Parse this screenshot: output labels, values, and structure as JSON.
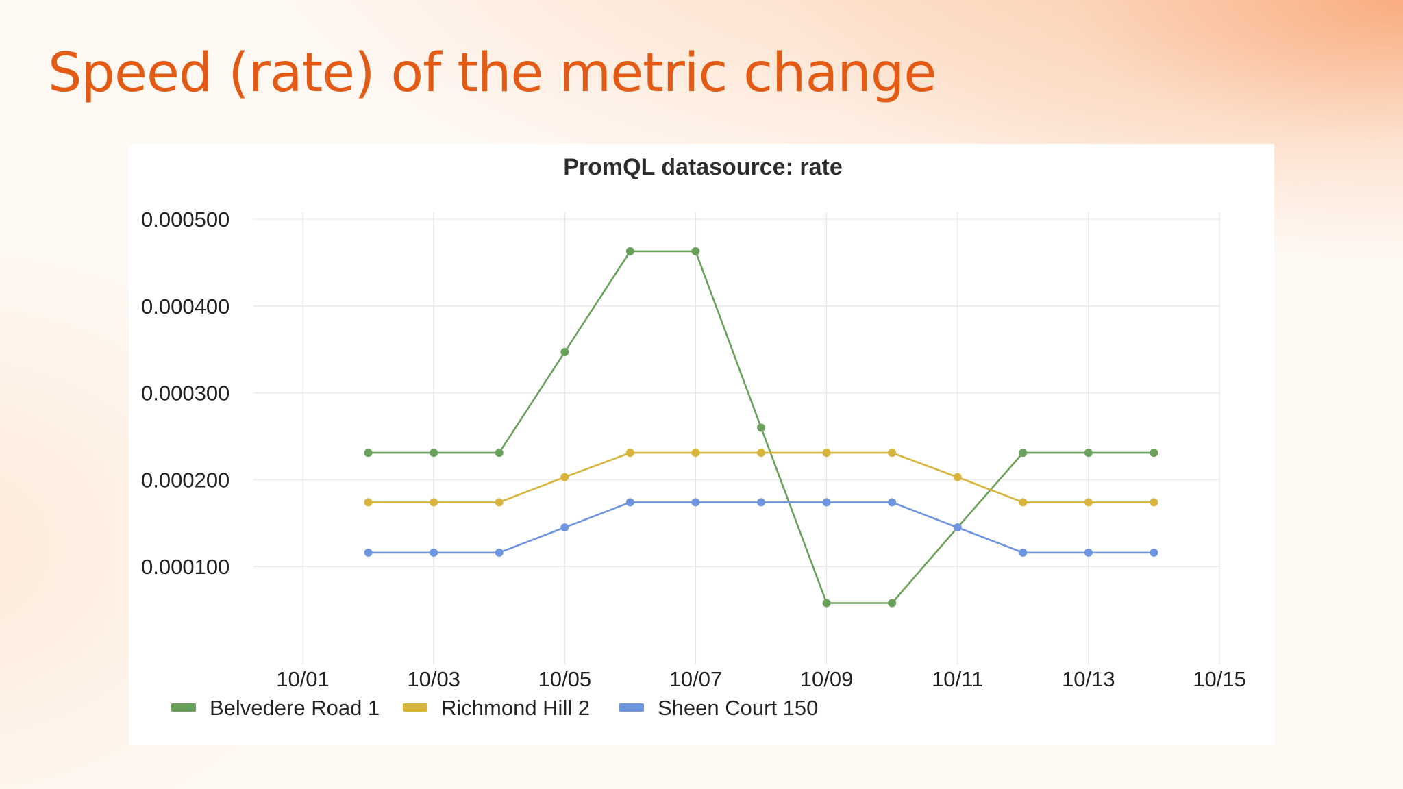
{
  "slide": {
    "title": "Speed (rate) of the metric change"
  },
  "chart_data": {
    "type": "line",
    "title": "PromQL datasource: rate",
    "xlabel": "",
    "ylabel": "",
    "x_tick_labels": [
      "10/01",
      "10/03",
      "10/05",
      "10/07",
      "10/09",
      "10/11",
      "10/13",
      "10/15"
    ],
    "y_tick_labels": [
      "0.000100",
      "0.000200",
      "0.000300",
      "0.000400",
      "0.000500"
    ],
    "y_ticks": [
      0.0001,
      0.0002,
      0.0003,
      0.0004,
      0.0005
    ],
    "xlim": [
      "10/01",
      "10/15"
    ],
    "ylim": [
      0.0,
      0.0005
    ],
    "grid": true,
    "legend_position": "bottom-left",
    "x": [
      "10/02",
      "10/03",
      "10/04",
      "10/05",
      "10/06",
      "10/07",
      "10/08",
      "10/09",
      "10/10",
      "10/11",
      "10/12",
      "10/13",
      "10/14"
    ],
    "series": [
      {
        "name": "Belvedere Road 1",
        "color": "#6aa15a",
        "values": [
          0.000231,
          0.000231,
          0.000231,
          0.000347,
          0.000463,
          0.000463,
          0.00026,
          5.8e-05,
          5.8e-05,
          0.000145,
          0.000231,
          0.000231,
          0.000231
        ]
      },
      {
        "name": "Richmond Hill 2",
        "color": "#d8b43c",
        "values": [
          0.000174,
          0.000174,
          0.000174,
          0.000203,
          0.000231,
          0.000231,
          0.000231,
          0.000231,
          0.000231,
          0.000203,
          0.000174,
          0.000174,
          0.000174
        ]
      },
      {
        "name": "Sheen Court 150",
        "color": "#6e95e0",
        "values": [
          0.000116,
          0.000116,
          0.000116,
          0.000145,
          0.000174,
          0.000174,
          0.000174,
          0.000174,
          0.000174,
          0.000145,
          0.000116,
          0.000116,
          0.000116
        ]
      }
    ]
  }
}
